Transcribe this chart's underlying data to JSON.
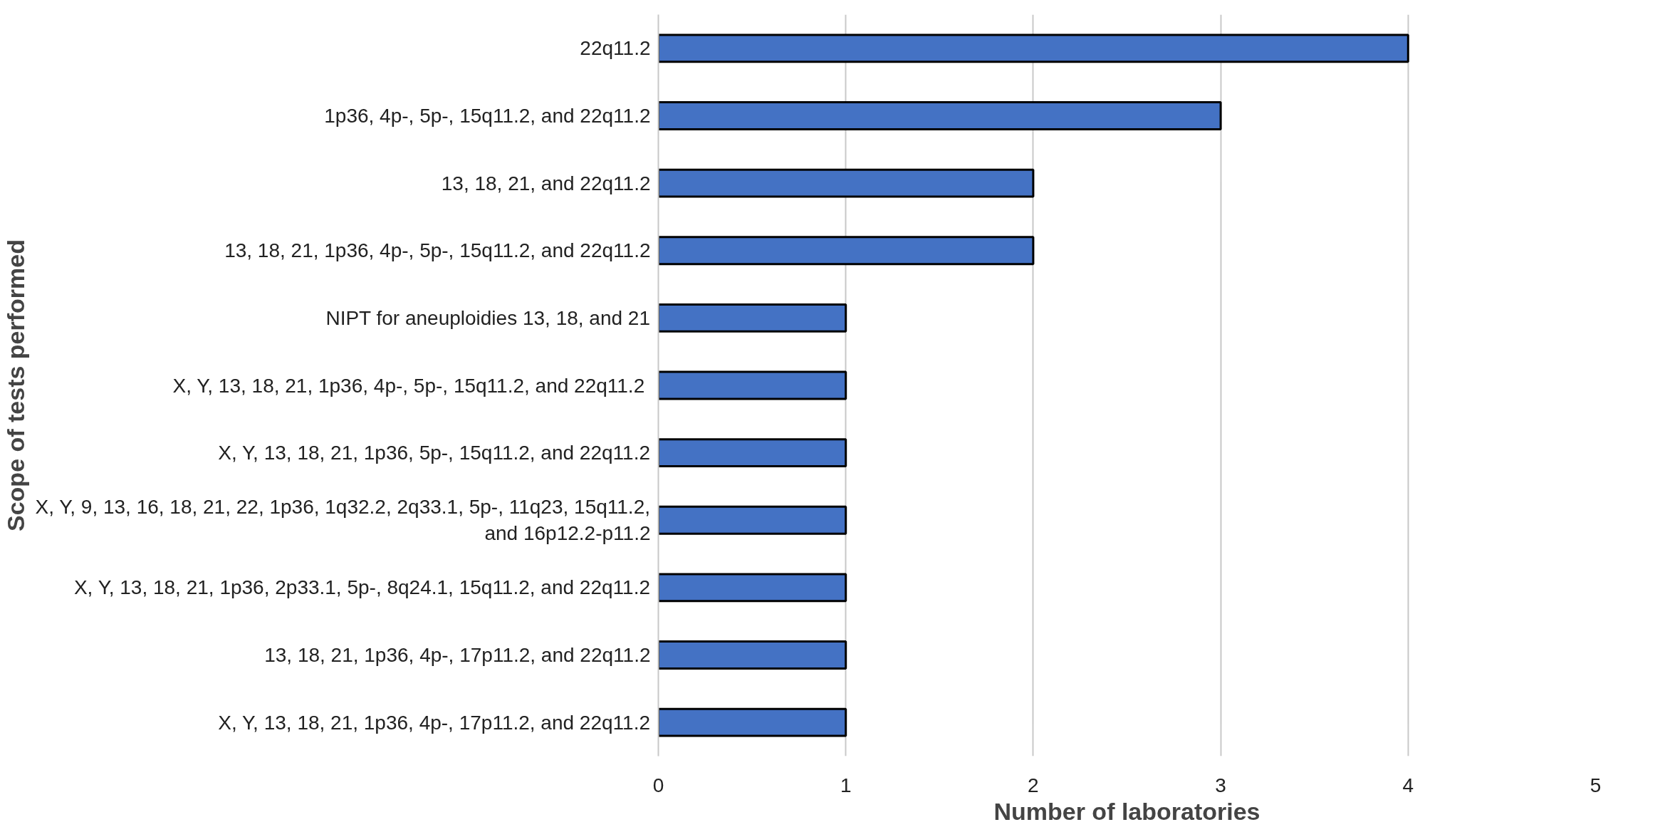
{
  "chart_data": {
    "type": "bar",
    "orientation": "horizontal",
    "categories": [
      "22q11.2",
      "1p36, 4p-, 5p-, 15q11.2, and 22q11.2",
      "13, 18, 21, and 22q11.2",
      "13, 18, 21, 1p36, 4p-, 5p-, 15q11.2, and 22q11.2",
      "NIPT for aneuploidies 13, 18, and 21",
      "X, Y, 13, 18, 21, 1p36, 4p-, 5p-, 15q11.2,  and 22q11.2",
      "X, Y, 13, 18, 21, 1p36, 5p-, 15q11.2, and 22q11.2",
      "X, Y, 9, 13, 16, 18, 21, 22, 1p36, 1q32.2, 2q33.1, 5p-, 11q23, 15q11.2, and 16p12.2-p11.2",
      "X, Y, 13, 18, 21, 1p36, 2p33.1, 5p-, 8q24.1, 15q11.2, and 22q11.2",
      "13, 18, 21, 1p36, 4p-, 17p11.2, and 22q11.2",
      "X, Y, 13, 18, 21, 1p36, 4p-, 17p11.2, and 22q11.2"
    ],
    "values": [
      4,
      3,
      2,
      2,
      1,
      1,
      1,
      1,
      1,
      1,
      1
    ],
    "color": "#4472c4",
    "xlabel": "Number of laboratories",
    "ylabel": "Scope of tests performed",
    "xlim": [
      0,
      5
    ],
    "xticks": [
      0,
      1,
      2,
      3,
      4,
      5
    ],
    "grid": "x"
  }
}
